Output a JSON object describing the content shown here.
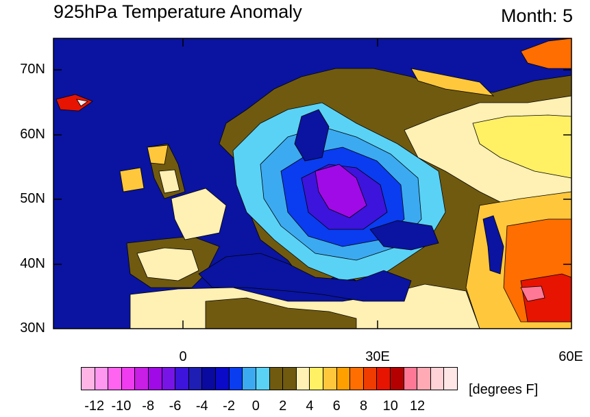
{
  "header": {
    "title": "925hPa Temperature Anomaly",
    "month_label": "Month: 5"
  },
  "axes": {
    "lat_labels": [
      "70N",
      "60N",
      "50N",
      "40N",
      "30N"
    ],
    "lon_labels": [
      "0",
      "30E",
      "60E"
    ]
  },
  "colorbar": {
    "units": "[degrees F]",
    "colors": [
      "#ffb4e6",
      "#ff96f0",
      "#ff64f0",
      "#f03cf0",
      "#c81ee6",
      "#a00ae6",
      "#7814e6",
      "#3c14dc",
      "#1e1eb4",
      "#0a0aa0",
      "#0a0ac8",
      "#0a3cf0",
      "#3caaf0",
      "#5ad2f5",
      "#705a10",
      "#705a10",
      "#fff0b4",
      "#fff064",
      "#ffc83c",
      "#ffa000",
      "#ff6e00",
      "#f03c00",
      "#e61400",
      "#b40000",
      "#ff7896",
      "#ffaab4",
      "#ffd2d7",
      "#ffe6e6"
    ],
    "tick_labels": [
      "-12",
      "-10",
      "-8",
      "-6",
      "-4",
      "-2",
      "0",
      "2",
      "4",
      "6",
      "8",
      "10",
      "12"
    ]
  },
  "map": {
    "ocean_color": "#0a14a0",
    "colors": {
      "anom_0": "#705a10",
      "warm_2": "#fff0b4",
      "warm_3": "#fff064",
      "warm_4": "#ffc83c",
      "warm_6": "#ff6e00",
      "warm_8": "#e61400",
      "warm_10": "#ff7896",
      "warm_12": "#ffe6e6",
      "cold_1": "#5ad2f5",
      "cold_2": "#3caaf0",
      "cold_4": "#0a3cf0",
      "cold_6": "#3c14dc",
      "cold_8": "#a00ae6"
    }
  }
}
